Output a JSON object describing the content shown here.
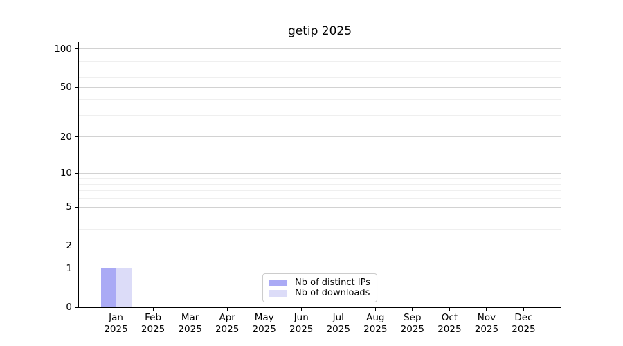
{
  "chart_data": {
    "type": "bar",
    "title": "getip 2025",
    "categories": [
      {
        "label": "Jan",
        "sublabel": "2025"
      },
      {
        "label": "Feb",
        "sublabel": "2025"
      },
      {
        "label": "Mar",
        "sublabel": "2025"
      },
      {
        "label": "Apr",
        "sublabel": "2025"
      },
      {
        "label": "May",
        "sublabel": "2025"
      },
      {
        "label": "Jun",
        "sublabel": "2025"
      },
      {
        "label": "Jul",
        "sublabel": "2025"
      },
      {
        "label": "Aug",
        "sublabel": "2025"
      },
      {
        "label": "Sep",
        "sublabel": "2025"
      },
      {
        "label": "Oct",
        "sublabel": "2025"
      },
      {
        "label": "Nov",
        "sublabel": "2025"
      },
      {
        "label": "Dec",
        "sublabel": "2025"
      }
    ],
    "series": [
      {
        "name": "Nb of distinct IPs",
        "color": "#aaaaf5",
        "values": [
          1,
          0,
          0,
          0,
          0,
          0,
          0,
          0,
          0,
          0,
          0,
          0
        ]
      },
      {
        "name": "Nb of downloads",
        "color": "#dcdcf8",
        "values": [
          1,
          0,
          0,
          0,
          0,
          0,
          0,
          0,
          0,
          0,
          0,
          0
        ]
      }
    ],
    "xlabel": "",
    "ylabel": "",
    "yscale": "log1p",
    "ylim": [
      0,
      113
    ],
    "y_major_ticks": [
      0,
      1,
      2,
      5,
      10,
      20,
      50,
      100
    ],
    "y_minor_ticks": [
      3,
      4,
      6,
      7,
      8,
      9,
      30,
      40,
      60,
      70,
      80,
      90
    ],
    "grid": true,
    "legend_position": "lower center"
  },
  "colors": {
    "background": "#ffffff",
    "axis": "#000000",
    "text": "#000000",
    "major_grid": "#d2d2d2",
    "minor_grid": "#efefef",
    "legend_border": "#cccccc",
    "bar_distinct_ips": "#aaaaf5",
    "bar_downloads": "#dcdcf8"
  }
}
